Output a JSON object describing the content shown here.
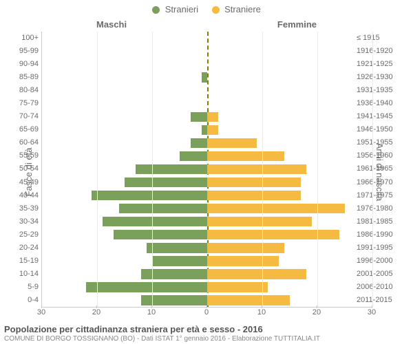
{
  "legend": {
    "male": {
      "label": "Stranieri",
      "color": "#7ba05b"
    },
    "female": {
      "label": "Straniere",
      "color": "#f4ba41"
    }
  },
  "side_titles": {
    "left": "Maschi",
    "right": "Femmine"
  },
  "axis_labels": {
    "left": "Fasce di età",
    "right": "Anni di nascita"
  },
  "footer": {
    "title": "Popolazione per cittadinanza straniera per età e sesso - 2016",
    "subtitle": "COMUNE DI BORGO TOSSIGNANO (BO) - Dati ISTAT 1° gennaio 2016 - Elaborazione TUTTITALIA.IT"
  },
  "chart": {
    "type": "population-pyramid",
    "x_max": 30,
    "x_ticks": [
      30,
      20,
      10,
      0,
      10,
      20,
      30
    ],
    "background_color": "#ffffff",
    "grid_color": "#ececec",
    "axis_color": "#c8c8c8",
    "center_line_color": "#808000",
    "tick_fontsize": 11,
    "side_title_fontsize": 13,
    "legend_fontsize": 13,
    "rows": [
      {
        "age": "100+",
        "year": "≤ 1915",
        "m": 0,
        "f": 0
      },
      {
        "age": "95-99",
        "year": "1916-1920",
        "m": 0,
        "f": 0
      },
      {
        "age": "90-94",
        "year": "1921-1925",
        "m": 0,
        "f": 0
      },
      {
        "age": "85-89",
        "year": "1926-1930",
        "m": 1,
        "f": 0
      },
      {
        "age": "80-84",
        "year": "1931-1935",
        "m": 0,
        "f": 0
      },
      {
        "age": "75-79",
        "year": "1936-1940",
        "m": 0,
        "f": 0
      },
      {
        "age": "70-74",
        "year": "1941-1945",
        "m": 3,
        "f": 2
      },
      {
        "age": "65-69",
        "year": "1946-1950",
        "m": 1,
        "f": 2
      },
      {
        "age": "60-64",
        "year": "1951-1955",
        "m": 3,
        "f": 9
      },
      {
        "age": "55-59",
        "year": "1956-1960",
        "m": 5,
        "f": 14
      },
      {
        "age": "50-54",
        "year": "1961-1965",
        "m": 13,
        "f": 18
      },
      {
        "age": "45-49",
        "year": "1966-1970",
        "m": 15,
        "f": 17
      },
      {
        "age": "40-44",
        "year": "1971-1975",
        "m": 21,
        "f": 17
      },
      {
        "age": "35-39",
        "year": "1976-1980",
        "m": 16,
        "f": 25
      },
      {
        "age": "30-34",
        "year": "1981-1985",
        "m": 19,
        "f": 19
      },
      {
        "age": "25-29",
        "year": "1986-1990",
        "m": 17,
        "f": 24
      },
      {
        "age": "20-24",
        "year": "1991-1995",
        "m": 11,
        "f": 14
      },
      {
        "age": "15-19",
        "year": "1996-2000",
        "m": 10,
        "f": 13
      },
      {
        "age": "10-14",
        "year": "2001-2005",
        "m": 12,
        "f": 18
      },
      {
        "age": "5-9",
        "year": "2006-2010",
        "m": 22,
        "f": 11
      },
      {
        "age": "0-4",
        "year": "2011-2015",
        "m": 12,
        "f": 15
      }
    ]
  }
}
